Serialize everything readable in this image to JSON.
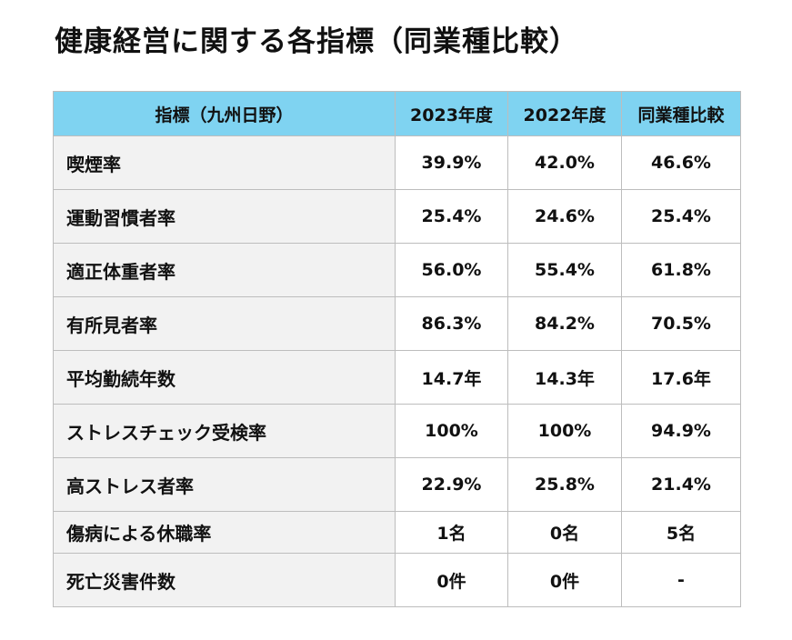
{
  "title": "健康経営に関する各指標（同業種比較）",
  "table": {
    "headers": [
      "指標（九州日野）",
      "2023年度",
      "2022年度",
      "同業種比較"
    ],
    "rows": [
      {
        "label": "喫煙率",
        "y2023": "39.9%",
        "y2022": "42.0%",
        "industry": "46.6%"
      },
      {
        "label": "運動習慣者率",
        "y2023": "25.4%",
        "y2022": "24.6%",
        "industry": "25.4%"
      },
      {
        "label": "適正体重者率",
        "y2023": "56.0%",
        "y2022": "55.4%",
        "industry": "61.8%"
      },
      {
        "label": "有所見者率",
        "y2023": "86.3%",
        "y2022": "84.2%",
        "industry": "70.5%"
      },
      {
        "label": "平均勤続年数",
        "y2023": "14.7年",
        "y2022": "14.3年",
        "industry": "17.6年"
      },
      {
        "label": "ストレスチェック受検率",
        "y2023": "100%",
        "y2022": "100%",
        "industry": "94.9%"
      },
      {
        "label": "高ストレス者率",
        "y2023": "22.9%",
        "y2022": "25.8%",
        "industry": "21.4%"
      },
      {
        "label": "傷病による休職率",
        "y2023": "1名",
        "y2022": "0名",
        "industry": "5名"
      },
      {
        "label": "死亡災害件数",
        "y2023": "0件",
        "y2022": "0件",
        "industry": "-"
      }
    ]
  },
  "colors": {
    "header_bg": "#7fd3f1",
    "label_bg": "#f2f2f2",
    "border": "#bdbdbd"
  }
}
